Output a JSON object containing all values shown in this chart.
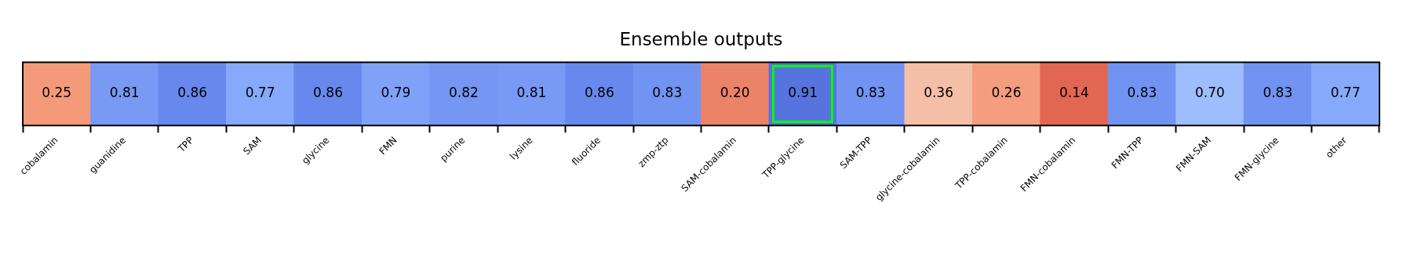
{
  "chart_data": {
    "type": "heatmap",
    "title": "Ensemble outputs",
    "categories": [
      "cobalamin",
      "guanidine",
      "TPP",
      "SAM",
      "glycine",
      "FMN",
      "purine",
      "lysine",
      "fluoride",
      "zmp-ztp",
      "SAM-cobalamin",
      "TPP-glycine",
      "SAM-TPP",
      "glycine-cobalamin",
      "TPP-cobalamin",
      "FMN-cobalamin",
      "FMN-TPP",
      "FMN-SAM",
      "FMN-glycine",
      "other"
    ],
    "y_categories": [
      null
    ],
    "cells": [
      [
        0.25,
        0.81,
        0.86,
        0.77,
        0.86,
        0.79,
        0.82,
        0.81,
        0.86,
        0.83,
        0.2,
        0.91,
        0.83,
        0.36,
        0.26,
        0.14,
        0.83,
        0.7,
        0.83,
        0.77
      ]
    ],
    "cell_labels": [
      [
        "0.25",
        "0.81",
        "0.86",
        "0.77",
        "0.86",
        "0.79",
        "0.82",
        "0.81",
        "0.86",
        "0.83",
        "0.20",
        "0.91",
        "0.83",
        "0.36",
        "0.26",
        "0.14",
        "0.83",
        "0.70",
        "0.83",
        "0.77"
      ]
    ],
    "data_labels": true
  }
}
